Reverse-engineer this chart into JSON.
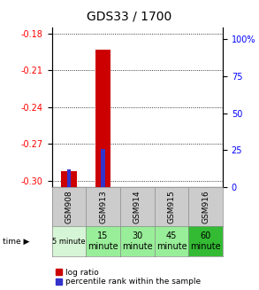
{
  "title": "GDS33 / 1700",
  "categories": [
    "GSM908",
    "GSM913",
    "GSM914",
    "GSM915",
    "GSM916"
  ],
  "log_ratio": [
    -0.292,
    -0.193,
    null,
    null,
    null
  ],
  "percentile_rank_pct": [
    11.7,
    26.0,
    null,
    null,
    null
  ],
  "ylim_left": [
    -0.305,
    -0.175
  ],
  "ylim_right": [
    0,
    108
  ],
  "yticks_left": [
    -0.3,
    -0.27,
    -0.24,
    -0.21,
    -0.18
  ],
  "yticks_right": [
    0,
    25,
    50,
    75,
    100
  ],
  "bar_color_red": "#cc0000",
  "bar_color_blue": "#3333cc",
  "bg_color": "#ffffff",
  "cell_colors_time": [
    "#d6f5d6",
    "#99ee99",
    "#99ee99",
    "#99ee99",
    "#33bb33"
  ],
  "gsm_bg": "#cccccc",
  "time_labels": [
    "5 minute",
    "15\nminute",
    "30\nminute",
    "45\nminute",
    "60\nminute"
  ],
  "legend_red_label": "log ratio",
  "legend_blue_label": "percentile rank within the sample",
  "title_fontsize": 10,
  "tick_fontsize": 7,
  "gsm_fontsize": 6.5,
  "time_fontsize": 7,
  "time_fontsize_first": 6,
  "legend_fontsize": 6.5
}
